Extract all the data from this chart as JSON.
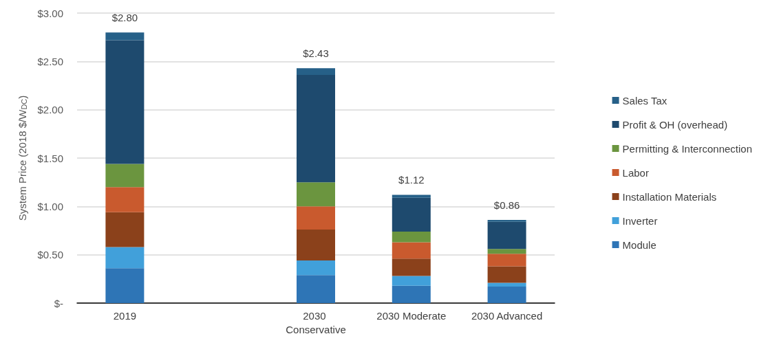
{
  "chart_data": {
    "type": "bar",
    "stacked": true,
    "ylabel": "System Price (2018 $/W$_{DC}$)",
    "categories": [
      "2019",
      null,
      "2030 Conservative",
      "2030 Moderate",
      "2030 Advanced"
    ],
    "series": [
      {
        "name": "Module",
        "color": "#2e75b6",
        "values": [
          0.36,
          null,
          0.29,
          0.18,
          0.17
        ]
      },
      {
        "name": "Inverter",
        "color": "#41a0da",
        "values": [
          0.22,
          null,
          0.15,
          0.1,
          0.04
        ]
      },
      {
        "name": "Installation Materials",
        "color": "#8b411b",
        "values": [
          0.36,
          null,
          0.32,
          0.18,
          0.17
        ]
      },
      {
        "name": "Labor",
        "color": "#c95a2e",
        "values": [
          0.26,
          null,
          0.24,
          0.17,
          0.13
        ]
      },
      {
        "name": "Permitting & Interconnection",
        "color": "#6b953f",
        "values": [
          0.24,
          null,
          0.25,
          0.11,
          0.05
        ]
      },
      {
        "name": "Profit & OH (overhead)",
        "color": "#1e4a6e",
        "values": [
          1.28,
          null,
          1.11,
          0.35,
          0.28
        ]
      },
      {
        "name": "Sales Tax",
        "color": "#266088",
        "values": [
          0.08,
          null,
          0.07,
          0.03,
          0.02
        ]
      }
    ],
    "totals": [
      "$2.80",
      null,
      "$2.43",
      "$1.12",
      "$0.86"
    ],
    "ylim": [
      0,
      3
    ],
    "yticks": [
      {
        "value": 0,
        "label": "$-"
      },
      {
        "value": 0.5,
        "label": "$0.50"
      },
      {
        "value": 1,
        "label": "$1.00"
      },
      {
        "value": 1.5,
        "label": "$1.50"
      },
      {
        "value": 2,
        "label": "$2.00"
      },
      {
        "value": 2.5,
        "label": "$2.50"
      },
      {
        "value": 3,
        "label": "$3.00"
      }
    ],
    "grid": "y",
    "legend": "right"
  }
}
